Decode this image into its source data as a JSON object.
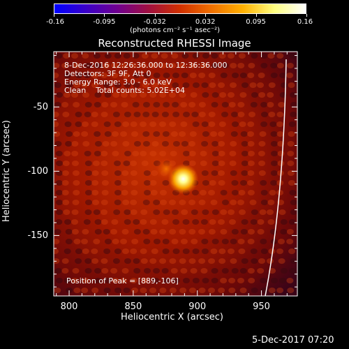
{
  "colorbar": {
    "tick_labels": [
      "-0.16",
      "-0.095",
      "-0.032",
      "0.032",
      "0.095",
      "0.16"
    ],
    "unit_label": "(photons cm⁻² s⁻¹ asec⁻²)",
    "colors": [
      "#0000ff",
      "#3a00c8",
      "#700090",
      "#a01040",
      "#d03000",
      "#f07000",
      "#ffb000",
      "#ffff80",
      "#ffffff"
    ]
  },
  "image": {
    "title": "Reconstructed RHESSI Image",
    "info_lines": [
      "8-Dec-2016 12:26:36.000 to 12:36:36.000",
      "Detectors: 3F 9F, Att 0",
      "Energy Range: 3.0 - 6.0 keV",
      "Clean    Total counts: 5.02E+04"
    ],
    "peak_text": "Position of Peak = [889,-106]",
    "peak": {
      "x": 889,
      "y": -106
    }
  },
  "axes": {
    "xlabel": "Heliocentric X (arcsec)",
    "ylabel": "Heliocentric Y (arcsec)",
    "x_range": [
      788,
      978
    ],
    "y_range": [
      -197,
      -7
    ],
    "x_ticks": [
      800,
      850,
      900,
      950
    ],
    "y_ticks": [
      -50,
      -100,
      -150
    ]
  },
  "timestamp": "5-Dec-2017 07:20"
}
